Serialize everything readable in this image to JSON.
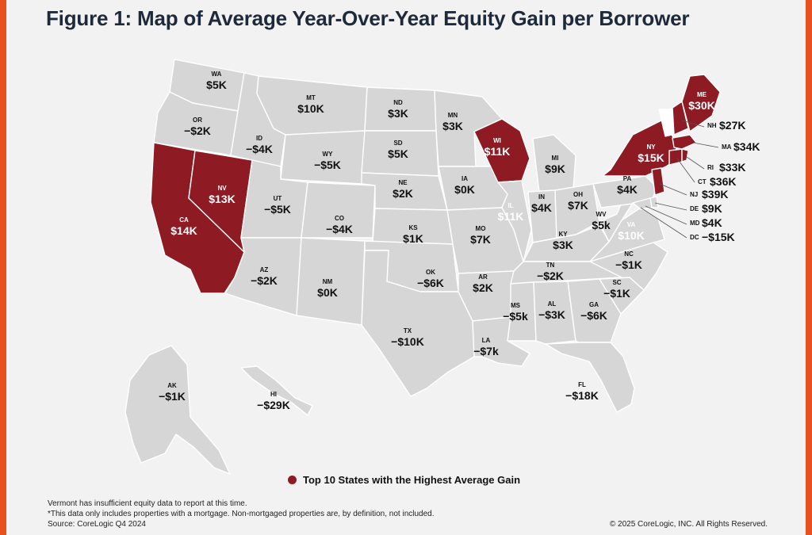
{
  "title": "Figure 1: Map of Average Year-Over-Year Equity Gain per Borrower",
  "colors": {
    "highlight": "#8e1b24",
    "state": "#d6d6d6",
    "border": "#ffffff",
    "accent": "#e8501e",
    "no_data": "#ffffff"
  },
  "legend": {
    "label": "Top 10 States with the Highest Average Gain"
  },
  "footnotes": {
    "line1": "Vermont has insufficient equity data to report at this time.",
    "line2": "*This data only includes properties with a mortgage. Non-mortgaged properties are, by definition, not included.",
    "line3": "Source: CoreLogic Q4 2024",
    "copyright": "© 2025 CoreLogic, INC. All Rights Reserved."
  },
  "states": [
    {
      "abbr": "WA",
      "value": "$5K",
      "top10": false
    },
    {
      "abbr": "OR",
      "value": "−$2K",
      "top10": false
    },
    {
      "abbr": "CA",
      "value": "$14K",
      "top10": true
    },
    {
      "abbr": "NV",
      "value": "$13K",
      "top10": true
    },
    {
      "abbr": "ID",
      "value": "−$4K",
      "top10": false
    },
    {
      "abbr": "MT",
      "value": "$10K",
      "top10": false
    },
    {
      "abbr": "WY",
      "value": "−$5K",
      "top10": false
    },
    {
      "abbr": "UT",
      "value": "−$5K",
      "top10": false
    },
    {
      "abbr": "CO",
      "value": "−$4K",
      "top10": false
    },
    {
      "abbr": "AZ",
      "value": "−$2K",
      "top10": false
    },
    {
      "abbr": "NM",
      "value": "$0K",
      "top10": false
    },
    {
      "abbr": "ND",
      "value": "$3K",
      "top10": false
    },
    {
      "abbr": "SD",
      "value": "$5K",
      "top10": false
    },
    {
      "abbr": "NE",
      "value": "$2K",
      "top10": false
    },
    {
      "abbr": "KS",
      "value": "$1K",
      "top10": false
    },
    {
      "abbr": "OK",
      "value": "−$6K",
      "top10": false
    },
    {
      "abbr": "TX",
      "value": "−$10K",
      "top10": false
    },
    {
      "abbr": "MN",
      "value": "$3K",
      "top10": false
    },
    {
      "abbr": "IA",
      "value": "$0K",
      "top10": false
    },
    {
      "abbr": "MO",
      "value": "$7K",
      "top10": false
    },
    {
      "abbr": "AR",
      "value": "$2K",
      "top10": false
    },
    {
      "abbr": "LA",
      "value": "−$7k",
      "top10": false
    },
    {
      "abbr": "WI",
      "value": "$11K",
      "top10": true
    },
    {
      "abbr": "IL",
      "value": "$11K",
      "top10": false
    },
    {
      "abbr": "MI",
      "value": "$9K",
      "top10": false
    },
    {
      "abbr": "IN",
      "value": "$4K",
      "top10": false
    },
    {
      "abbr": "OH",
      "value": "$7K",
      "top10": false
    },
    {
      "abbr": "KY",
      "value": "$3K",
      "top10": false
    },
    {
      "abbr": "TN",
      "value": "−$2K",
      "top10": false
    },
    {
      "abbr": "MS",
      "value": "−$5k",
      "top10": false
    },
    {
      "abbr": "AL",
      "value": "−$3K",
      "top10": false
    },
    {
      "abbr": "GA",
      "value": "−$6K",
      "top10": false
    },
    {
      "abbr": "FL",
      "value": "−$18K",
      "top10": false
    },
    {
      "abbr": "SC",
      "value": "−$1K",
      "top10": false
    },
    {
      "abbr": "NC",
      "value": "−$1K",
      "top10": false
    },
    {
      "abbr": "VA",
      "value": "$10K",
      "top10": false
    },
    {
      "abbr": "WV",
      "value": "$5k",
      "top10": false
    },
    {
      "abbr": "PA",
      "value": "$4K",
      "top10": false
    },
    {
      "abbr": "NY",
      "value": "$15K",
      "top10": true
    },
    {
      "abbr": "ME",
      "value": "$30K",
      "top10": true
    },
    {
      "abbr": "NH",
      "value": "$27K",
      "top10": true
    },
    {
      "abbr": "MA",
      "value": "$34K",
      "top10": true
    },
    {
      "abbr": "RI",
      "value": "$33K",
      "top10": true
    },
    {
      "abbr": "CT",
      "value": "$36K",
      "top10": true
    },
    {
      "abbr": "NJ",
      "value": "$39K",
      "top10": true
    },
    {
      "abbr": "DE",
      "value": "$9K",
      "top10": false
    },
    {
      "abbr": "MD",
      "value": "$4K",
      "top10": false
    },
    {
      "abbr": "DC",
      "value": "−$15K",
      "top10": false
    },
    {
      "abbr": "AK",
      "value": "−$1K",
      "top10": false
    },
    {
      "abbr": "HI",
      "value": "−$29K",
      "top10": false
    }
  ]
}
